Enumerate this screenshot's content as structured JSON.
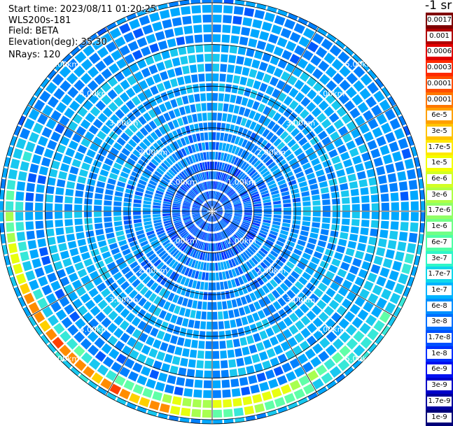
{
  "header": {
    "start_time": "Start time: 2023/08/11 01:20:25",
    "instrument": "WLS200s-181",
    "field": "Field: BETA",
    "elevation": "Elevation(deg): 35.30",
    "nrays": "NRays: 120"
  },
  "colorbar": {
    "unit": "-1 sr",
    "labels": [
      "0.0017",
      "0.001",
      "0.0006",
      "0.0003",
      "0.00017",
      "0.0001",
      "6e-5",
      "3e-5",
      "1.7e-5",
      "1e-5",
      "6e-6",
      "3e-6",
      "1.7e-6",
      "1e-6",
      "6e-7",
      "3e-7",
      "1.7e-7",
      "1e-7",
      "6e-8",
      "3e-8",
      "1.7e-8",
      "1e-8",
      "6e-9",
      "3e-9",
      "1.7e-9",
      "1e-9"
    ],
    "colors": [
      "#7f0000",
      "#b00000",
      "#e00000",
      "#ff2a00",
      "#ff4e00",
      "#ff7700",
      "#ffa000",
      "#ffc400",
      "#ffe800",
      "#f4ff00",
      "#d2ff24",
      "#b0ff46",
      "#90ff66",
      "#70ff86",
      "#50ffa6",
      "#2ff6c8",
      "#10d8ea",
      "#00b4ff",
      "#0090ff",
      "#0070ff",
      "#0050ff",
      "#0030ff",
      "#0010f0",
      "#0000c8",
      "#00009e",
      "#000078"
    ]
  },
  "chart_data": {
    "type": "heatmap",
    "subtype": "polar PPI scan",
    "quantity": "BETA (backscatter coefficient)",
    "nrays": 120,
    "range_ring_labels": [
      "1.00km",
      "2.00km",
      "3.00km",
      "4.00km",
      "5.00km"
    ],
    "range_rings_km": [
      1,
      2,
      3,
      4,
      5
    ],
    "max_range_km": 5.1,
    "spoke_count": 12,
    "color_scale": "log",
    "color_range": [
      1e-09,
      0.0017
    ],
    "pattern": {
      "inner_km": [
        0,
        1.2
      ],
      "inner_typical": "6e-8 to 1.7e-8",
      "middle_km": [
        1.2,
        4.0
      ],
      "middle_typical": "1.7e-7 to 3e-8",
      "outer_band_km": [
        4.4,
        5.1
      ],
      "outer_band_max": "3e-5 to 0.00017",
      "outer_band_sector": "south to west"
    }
  }
}
